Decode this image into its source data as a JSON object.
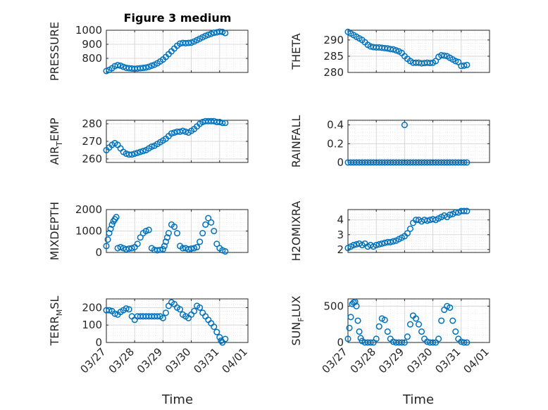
{
  "figure": {
    "title": "Figure 3 medium",
    "xlabel": "Time",
    "xticks": [
      "03/27",
      "03/28",
      "03/29",
      "03/30",
      "03/31",
      "04/01"
    ],
    "marker_color": "#0072BD",
    "axis_color": "#262626",
    "grid_color": "#dcdcdc"
  },
  "chart_data": [
    {
      "type": "scatter",
      "ylabel": "PRESSURE",
      "xlim": [
        0,
        5
      ],
      "ylim": [
        700,
        1000
      ],
      "yticks": [
        "800",
        "900",
        "1000"
      ],
      "ytick_values": [
        800,
        900,
        1000
      ],
      "x": [
        0.0,
        0.1,
        0.2,
        0.3,
        0.4,
        0.5,
        0.6,
        0.7,
        0.8,
        0.9,
        1.0,
        1.1,
        1.2,
        1.3,
        1.4,
        1.5,
        1.6,
        1.7,
        1.8,
        1.9,
        2.0,
        2.1,
        2.2,
        2.3,
        2.4,
        2.5,
        2.6,
        2.7,
        2.8,
        2.9,
        3.0,
        3.1,
        3.2,
        3.3,
        3.4,
        3.5,
        3.6,
        3.7,
        3.8,
        3.9,
        4.0,
        4.1,
        4.2
      ],
      "y": [
        710,
        718,
        730,
        745,
        752,
        748,
        740,
        733,
        730,
        728,
        726,
        728,
        730,
        732,
        735,
        740,
        748,
        755,
        765,
        778,
        792,
        810,
        830,
        850,
        870,
        890,
        905,
        910,
        908,
        910,
        912,
        920,
        930,
        940,
        950,
        960,
        968,
        975,
        982,
        985,
        990,
        988,
        980
      ]
    },
    {
      "type": "scatter",
      "ylabel": "THETA",
      "xlim": [
        0,
        5
      ],
      "ylim": [
        280,
        293
      ],
      "yticks": [
        "280",
        "285",
        "290"
      ],
      "ytick_values": [
        280,
        285,
        290
      ],
      "x": [
        0.0,
        0.1,
        0.2,
        0.3,
        0.4,
        0.5,
        0.6,
        0.7,
        0.8,
        0.9,
        1.0,
        1.1,
        1.2,
        1.3,
        1.4,
        1.5,
        1.6,
        1.7,
        1.8,
        1.9,
        2.0,
        2.1,
        2.2,
        2.3,
        2.4,
        2.5,
        2.6,
        2.7,
        2.8,
        2.9,
        3.0,
        3.1,
        3.2,
        3.3,
        3.4,
        3.5,
        3.6,
        3.7,
        3.8,
        3.9,
        4.0,
        4.1,
        4.2
      ],
      "y": [
        292.5,
        292,
        291.5,
        291,
        290.5,
        290,
        289.3,
        288.5,
        288,
        287.8,
        287.7,
        287.7,
        287.6,
        287.5,
        287.4,
        287.2,
        287.1,
        286.8,
        286.5,
        286,
        285,
        284.2,
        283.5,
        283,
        283,
        283,
        282.8,
        282.9,
        283,
        282.9,
        283,
        283.5,
        284.8,
        285.3,
        285.2,
        285,
        284.5,
        284,
        283.5,
        283.2,
        282,
        282.1,
        282.3
      ]
    },
    {
      "type": "scatter",
      "ylabel": "AIR",
      "ylabel_sub": "T",
      "ylabel_suffix": "EMP",
      "xlim": [
        0,
        5
      ],
      "ylim": [
        258,
        282
      ],
      "yticks": [
        "260",
        "270",
        "280"
      ],
      "ytick_values": [
        260,
        270,
        280
      ],
      "x": [
        0.0,
        0.1,
        0.2,
        0.3,
        0.4,
        0.5,
        0.6,
        0.7,
        0.8,
        0.9,
        1.0,
        1.1,
        1.2,
        1.3,
        1.4,
        1.5,
        1.6,
        1.7,
        1.8,
        1.9,
        2.0,
        2.1,
        2.2,
        2.3,
        2.4,
        2.5,
        2.6,
        2.7,
        2.8,
        2.9,
        3.0,
        3.1,
        3.2,
        3.3,
        3.4,
        3.5,
        3.6,
        3.7,
        3.8,
        3.9,
        4.0,
        4.1,
        4.2
      ],
      "y": [
        265,
        266.5,
        268,
        269,
        268,
        266,
        264,
        263,
        262.5,
        262.5,
        263,
        263.5,
        264,
        264.5,
        265,
        266,
        267,
        267.5,
        268.5,
        269.5,
        270.5,
        271.5,
        273,
        274.5,
        275,
        275.5,
        275.5,
        276,
        275.5,
        275,
        276,
        277,
        278.5,
        280,
        281,
        281.5,
        281.5,
        281.5,
        281.5,
        281,
        281,
        280.5,
        280.5
      ]
    },
    {
      "type": "scatter",
      "ylabel": "RAINFALL",
      "xlim": [
        0,
        5
      ],
      "ylim": [
        0,
        0.45
      ],
      "yticks": [
        "0",
        "0.2",
        "0.4"
      ],
      "ytick_values": [
        0,
        0.2,
        0.4
      ],
      "x": [
        0.0,
        0.1,
        0.2,
        0.3,
        0.4,
        0.5,
        0.6,
        0.7,
        0.8,
        0.9,
        1.0,
        1.1,
        1.2,
        1.3,
        1.4,
        1.5,
        1.6,
        1.7,
        1.8,
        1.9,
        2.0,
        2.1,
        2.2,
        2.3,
        2.4,
        2.5,
        2.6,
        2.7,
        2.8,
        2.9,
        3.0,
        3.1,
        3.2,
        3.3,
        3.4,
        3.5,
        3.6,
        3.7,
        3.8,
        3.9,
        4.0,
        4.1,
        4.2,
        2.0
      ],
      "y": [
        0,
        0,
        0,
        0,
        0,
        0,
        0,
        0,
        0,
        0,
        0,
        0,
        0,
        0,
        0,
        0,
        0,
        0,
        0,
        0,
        0,
        0,
        0,
        0,
        0,
        0,
        0,
        0,
        0,
        0,
        0,
        0,
        0,
        0,
        0,
        0,
        0,
        0,
        0,
        0,
        0,
        0,
        0,
        0.4
      ]
    },
    {
      "type": "scatter",
      "ylabel": "MIXDEPTH",
      "xlim": [
        0,
        5
      ],
      "ylim": [
        0,
        2000
      ],
      "yticks": [
        "0",
        "1000",
        "2000"
      ],
      "ytick_values": [
        0,
        1000,
        2000
      ],
      "x": [
        0.0,
        0.05,
        0.1,
        0.15,
        0.2,
        0.25,
        0.3,
        0.35,
        0.4,
        0.5,
        0.6,
        0.7,
        0.8,
        0.9,
        1.0,
        1.1,
        1.2,
        1.3,
        1.4,
        1.5,
        1.6,
        1.7,
        1.8,
        1.9,
        2.0,
        2.05,
        2.1,
        2.15,
        2.2,
        2.3,
        2.4,
        2.5,
        2.6,
        2.7,
        2.8,
        2.9,
        3.0,
        3.1,
        3.2,
        3.3,
        3.4,
        3.5,
        3.6,
        3.7,
        3.8,
        3.9,
        4.0,
        4.1,
        4.2
      ],
      "y": [
        300,
        600,
        900,
        1100,
        1300,
        1450,
        1550,
        1650,
        200,
        250,
        200,
        150,
        180,
        200,
        250,
        400,
        700,
        900,
        1000,
        1050,
        200,
        120,
        100,
        120,
        150,
        300,
        500,
        700,
        900,
        1300,
        1200,
        900,
        300,
        200,
        200,
        150,
        180,
        200,
        250,
        500,
        900,
        1300,
        1600,
        1400,
        1000,
        400,
        200,
        100,
        50
      ]
    },
    {
      "type": "scatter",
      "ylabel": "H2OMIXRA",
      "xlim": [
        0,
        5
      ],
      "ylim": [
        1.8,
        4.7
      ],
      "yticks": [
        "2",
        "3",
        "4"
      ],
      "ytick_values": [
        2,
        3,
        4
      ],
      "x": [
        0.0,
        0.1,
        0.2,
        0.3,
        0.4,
        0.5,
        0.6,
        0.7,
        0.8,
        0.9,
        1.0,
        1.1,
        1.2,
        1.3,
        1.4,
        1.5,
        1.6,
        1.7,
        1.8,
        1.9,
        2.0,
        2.1,
        2.2,
        2.3,
        2.4,
        2.5,
        2.6,
        2.7,
        2.8,
        2.9,
        3.0,
        3.1,
        3.2,
        3.3,
        3.4,
        3.5,
        3.6,
        3.7,
        3.8,
        3.9,
        4.0,
        4.1,
        4.2
      ],
      "y": [
        2.1,
        2.2,
        2.3,
        2.35,
        2.4,
        2.3,
        2.4,
        2.2,
        2.3,
        2.2,
        2.3,
        2.35,
        2.4,
        2.45,
        2.5,
        2.5,
        2.55,
        2.6,
        2.7,
        2.8,
        2.9,
        3.1,
        3.4,
        3.8,
        4.0,
        4.0,
        3.9,
        4.0,
        3.95,
        4.0,
        4.05,
        4.0,
        4.1,
        4.2,
        4.3,
        4.2,
        4.35,
        4.4,
        4.5,
        4.5,
        4.6,
        4.6,
        4.6
      ]
    },
    {
      "type": "scatter",
      "ylabel": "TERR",
      "ylabel_sub": "M",
      "ylabel_suffix": "SL",
      "xlim": [
        0,
        5
      ],
      "ylim": [
        0,
        250
      ],
      "yticks": [
        "0",
        "100",
        "200"
      ],
      "ytick_values": [
        0,
        100,
        200
      ],
      "x": [
        0.0,
        0.1,
        0.2,
        0.3,
        0.4,
        0.5,
        0.6,
        0.7,
        0.8,
        0.9,
        1.0,
        1.1,
        1.2,
        1.3,
        1.4,
        1.5,
        1.6,
        1.7,
        1.8,
        1.9,
        2.0,
        2.1,
        2.2,
        2.3,
        2.4,
        2.5,
        2.6,
        2.7,
        2.8,
        2.9,
        3.0,
        3.1,
        3.2,
        3.3,
        3.4,
        3.5,
        3.6,
        3.7,
        3.8,
        3.9,
        4.0,
        4.05,
        4.1,
        4.2
      ],
      "y": [
        185,
        185,
        180,
        165,
        160,
        175,
        185,
        195,
        190,
        150,
        130,
        150,
        150,
        150,
        150,
        150,
        150,
        150,
        150,
        150,
        140,
        170,
        210,
        230,
        220,
        200,
        190,
        160,
        150,
        140,
        160,
        180,
        210,
        200,
        170,
        150,
        130,
        110,
        90,
        60,
        30,
        10,
        0,
        20
      ]
    },
    {
      "type": "scatter",
      "ylabel": "SUN",
      "ylabel_sub": "F",
      "ylabel_suffix": "LUX",
      "xlim": [
        0,
        5
      ],
      "ylim": [
        0,
        600
      ],
      "yticks": [
        "0",
        "500"
      ],
      "ytick_values": [
        0,
        500
      ],
      "x": [
        0.0,
        0.05,
        0.1,
        0.15,
        0.2,
        0.25,
        0.3,
        0.35,
        0.4,
        0.45,
        0.5,
        0.6,
        0.7,
        0.8,
        0.9,
        1.0,
        1.1,
        1.2,
        1.3,
        1.4,
        1.5,
        1.6,
        1.7,
        1.8,
        1.9,
        2.0,
        2.1,
        2.2,
        2.3,
        2.4,
        2.5,
        2.6,
        2.7,
        2.8,
        2.9,
        3.0,
        3.1,
        3.2,
        3.3,
        3.4,
        3.5,
        3.6,
        3.7,
        3.8,
        3.9,
        4.0,
        4.1,
        4.2
      ],
      "y": [
        50,
        200,
        350,
        530,
        550,
        560,
        500,
        300,
        150,
        60,
        20,
        0,
        0,
        0,
        0,
        50,
        220,
        330,
        310,
        150,
        50,
        10,
        0,
        0,
        0,
        0,
        80,
        250,
        370,
        330,
        250,
        150,
        50,
        10,
        0,
        0,
        0,
        50,
        300,
        450,
        500,
        480,
        300,
        150,
        50,
        10,
        0,
        0
      ]
    }
  ]
}
